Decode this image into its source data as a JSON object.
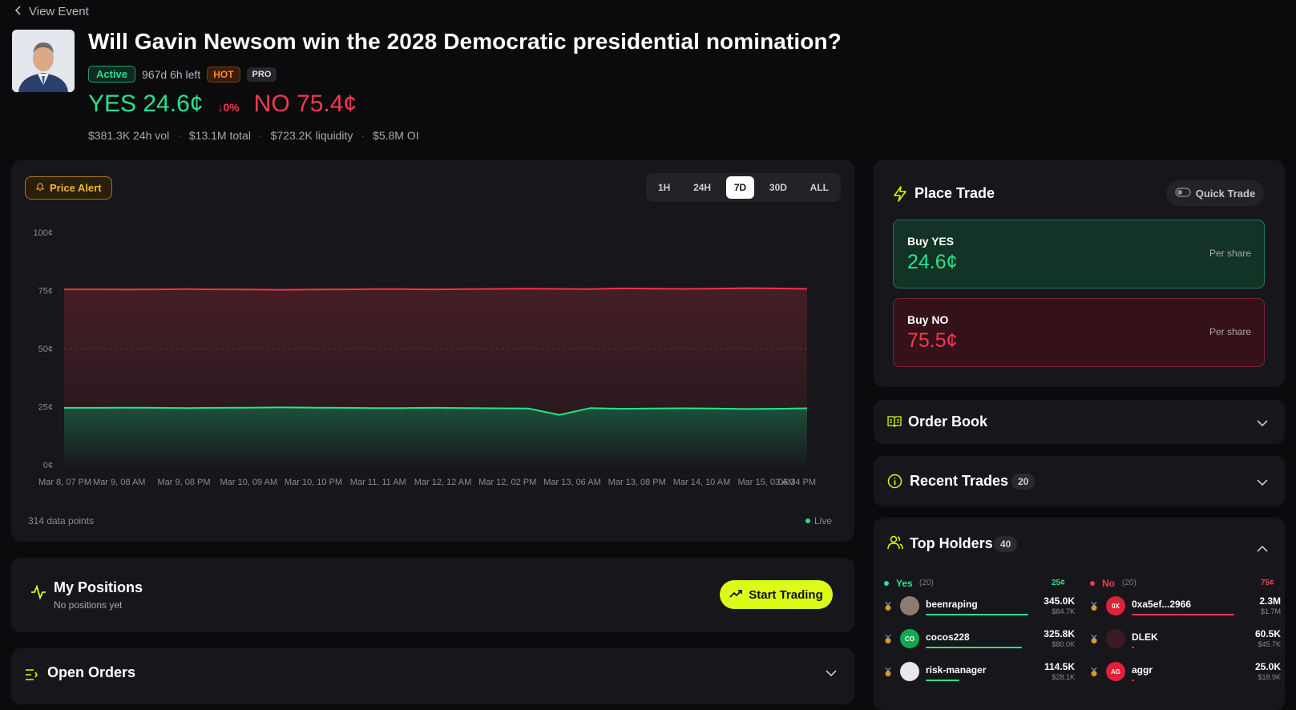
{
  "nav": {
    "back_label": "View Event"
  },
  "market": {
    "title": "Will Gavin Newsom win the 2028 Democratic presidential nomination?",
    "status": "Active",
    "time_left": "967d 6h left",
    "hot_label": "HOT",
    "pro_label": "PRO",
    "yes_price": "YES 24.6¢",
    "change": "↓0%",
    "no_price": "NO 75.4¢",
    "stats": [
      "$381.3K 24h vol",
      "$13.1M total",
      "$723.2K liquidity",
      "$5.8M OI"
    ]
  },
  "chart_panel": {
    "price_alert_label": "Price Alert",
    "ranges": [
      "1H",
      "24H",
      "7D",
      "30D",
      "ALL"
    ],
    "selected_range": "7D",
    "data_points_label": "314 data points",
    "live_label": "Live"
  },
  "chart_data": {
    "type": "area",
    "ylim": [
      0,
      100
    ],
    "yticks": [
      "100¢",
      "75¢",
      "50¢",
      "25¢",
      "0¢"
    ],
    "xticks": [
      "Mar 8, 07 PM",
      "Mar 9, 08 AM",
      "Mar 9, 08 PM",
      "Mar 10, 09 AM",
      "Mar 10, 10 PM",
      "Mar 11, 11 AM",
      "Mar 12, 12 AM",
      "Mar 12, 02 PM",
      "Mar 13, 06 AM",
      "Mar 13, 08 PM",
      "Mar 14, 10 AM",
      "Mar 15, 03 AM",
      "06:34 PM"
    ],
    "grid": "dashed line at 50",
    "colors": {
      "yes": "#27e38b",
      "no": "#f0344c"
    },
    "series": [
      {
        "color": "#f0344c",
        "values": [
          75.5,
          75.5,
          75.4,
          75.5,
          75.6,
          75.5,
          75.4,
          75.3,
          75.4,
          75.5,
          75.6,
          75.6,
          75.5,
          75.6,
          75.7,
          75.8,
          75.7,
          75.6,
          75.9,
          75.8,
          75.7,
          75.8,
          76.0,
          75.9,
          75.7
        ]
      },
      {
        "color": "#27e38b",
        "values": [
          24.5,
          24.5,
          24.6,
          24.5,
          24.4,
          24.5,
          24.6,
          24.7,
          24.6,
          24.5,
          24.4,
          24.4,
          24.5,
          24.4,
          24.3,
          24.2,
          21.5,
          24.4,
          24.1,
          24.2,
          24.3,
          24.2,
          24.0,
          24.1,
          24.3
        ]
      }
    ]
  },
  "positions": {
    "title": "My Positions",
    "subtitle": "No positions yet",
    "start_label": "Start Trading"
  },
  "open_orders": {
    "title": "Open Orders"
  },
  "trade": {
    "title": "Place Trade",
    "quick_label": "Quick Trade",
    "buy_yes_label": "Buy YES",
    "buy_yes_price": "24.6¢",
    "buy_no_label": "Buy NO",
    "buy_no_price": "75.5¢",
    "per_share": "Per share"
  },
  "order_book": {
    "title": "Order Book"
  },
  "recent_trades": {
    "title": "Recent Trades",
    "count": "20"
  },
  "top_holders": {
    "title": "Top Holders",
    "count": "40",
    "yes_label": "Yes",
    "yes_count": "(20)",
    "yes_price": "25¢",
    "no_label": "No",
    "no_count": "(20)",
    "no_price": "75¢",
    "yes_holders": [
      {
        "name": "beenraping",
        "shares": "345.0K",
        "value": "$84.7K",
        "bar": 1.0,
        "avatar": "",
        "avatar_color": "#8b7b70"
      },
      {
        "name": "cocos228",
        "shares": "325.8K",
        "value": "$80.0K",
        "bar": 0.94,
        "avatar": "CO",
        "avatar_color": "#12a84f"
      },
      {
        "name": "risk-manager",
        "shares": "114.5K",
        "value": "$28.1K",
        "bar": 0.33,
        "avatar": "",
        "avatar_color": "#e8e8e8"
      }
    ],
    "no_holders": [
      {
        "name": "0xa5ef...2966",
        "shares": "2.3M",
        "value": "$1.7M",
        "bar": 1.0,
        "avatar": "0X",
        "avatar_color": "#e2203a"
      },
      {
        "name": "DLEK",
        "shares": "60.5K",
        "value": "$45.7K",
        "bar": 0.02,
        "avatar": "",
        "avatar_color": "#3b1a24"
      },
      {
        "name": "aggr",
        "shares": "25.0K",
        "value": "$18.9K",
        "bar": 0.01,
        "avatar": "AG",
        "avatar_color": "#e2203a"
      }
    ]
  }
}
